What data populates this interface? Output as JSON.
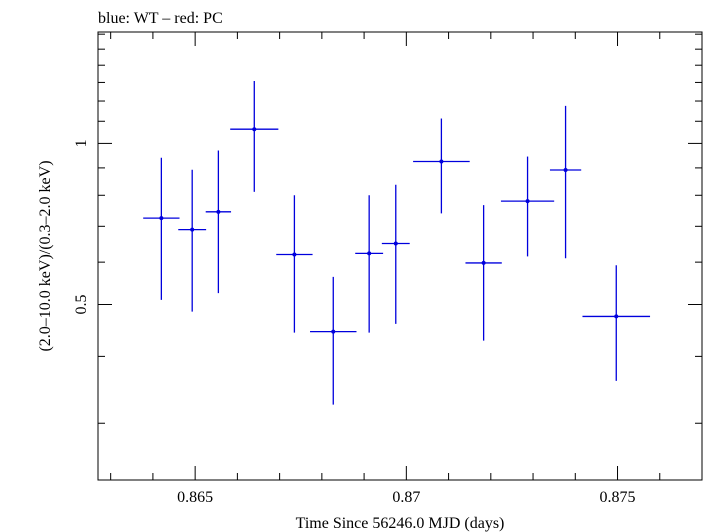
{
  "chart_data": {
    "type": "scatter",
    "title": "blue: WT – red: PC",
    "xlabel": "Time Since 56246.0 MJD (days)",
    "ylabel": "(2.0–10.0 keV)/(0.3–2.0 keV)",
    "xlim": [
      0.8627,
      0.877
    ],
    "ylim": [
      0.235,
      1.615
    ],
    "xticks": [
      {
        "value": 0.865,
        "label": "0.865"
      },
      {
        "value": 0.87,
        "label": "0.87"
      },
      {
        "value": 0.875,
        "label": "0.875"
      }
    ],
    "yticks": [
      {
        "value": 0.5,
        "label": "0.5"
      },
      {
        "value": 1.0,
        "label": "1"
      }
    ],
    "grid": false,
    "series": [
      {
        "color": "#0000dd",
        "points": [
          {
            "x": 0.8642,
            "xerr": 0.00043,
            "y": 0.725,
            "ylo": 0.51,
            "yhi": 0.94
          },
          {
            "x": 0.86493,
            "xerr": 0.00033,
            "y": 0.69,
            "ylo": 0.485,
            "yhi": 0.893
          },
          {
            "x": 0.86555,
            "xerr": 0.0003,
            "y": 0.745,
            "ylo": 0.525,
            "yhi": 0.97
          },
          {
            "x": 0.8664,
            "xerr": 0.00057,
            "y": 1.063,
            "ylo": 0.812,
            "yhi": 1.308
          },
          {
            "x": 0.86735,
            "xerr": 0.00043,
            "y": 0.62,
            "ylo": 0.443,
            "yhi": 0.8
          },
          {
            "x": 0.86827,
            "xerr": 0.00055,
            "y": 0.445,
            "ylo": 0.325,
            "yhi": 0.563
          },
          {
            "x": 0.86912,
            "xerr": 0.00033,
            "y": 0.623,
            "ylo": 0.443,
            "yhi": 0.8
          },
          {
            "x": 0.86975,
            "xerr": 0.00033,
            "y": 0.65,
            "ylo": 0.46,
            "yhi": 0.837
          },
          {
            "x": 0.87083,
            "xerr": 0.00067,
            "y": 0.925,
            "ylo": 0.74,
            "yhi": 1.113
          },
          {
            "x": 0.87183,
            "xerr": 0.00043,
            "y": 0.598,
            "ylo": 0.428,
            "yhi": 0.767
          },
          {
            "x": 0.87287,
            "xerr": 0.00063,
            "y": 0.78,
            "ylo": 0.615,
            "yhi": 0.945
          },
          {
            "x": 0.87377,
            "xerr": 0.00037,
            "y": 0.892,
            "ylo": 0.61,
            "yhi": 1.175
          },
          {
            "x": 0.87497,
            "xerr": 0.0008,
            "y": 0.475,
            "ylo": 0.36,
            "yhi": 0.592
          }
        ]
      }
    ]
  }
}
